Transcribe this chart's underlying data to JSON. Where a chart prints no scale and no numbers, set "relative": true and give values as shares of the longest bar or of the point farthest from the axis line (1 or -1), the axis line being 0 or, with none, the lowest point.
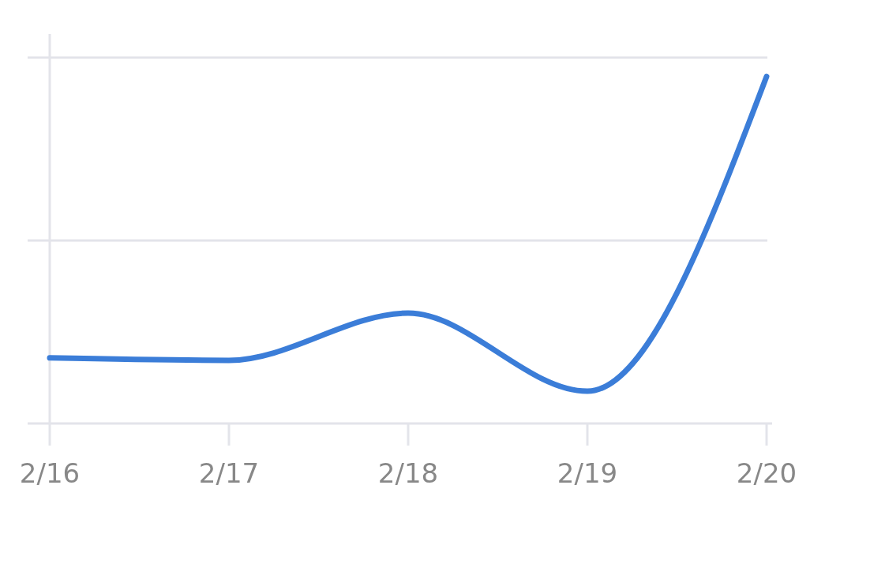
{
  "chart_data": {
    "type": "line",
    "relative": true,
    "categories": [
      "2/16",
      "2/17",
      "2/18",
      "2/19",
      "2/20"
    ],
    "series": [
      {
        "color": "#3b7dd8",
        "values": [
          0.189,
          0.182,
          0.318,
          0.093,
          1
        ]
      }
    ],
    "grid": true,
    "marker": "none",
    "line_style": "solid"
  }
}
